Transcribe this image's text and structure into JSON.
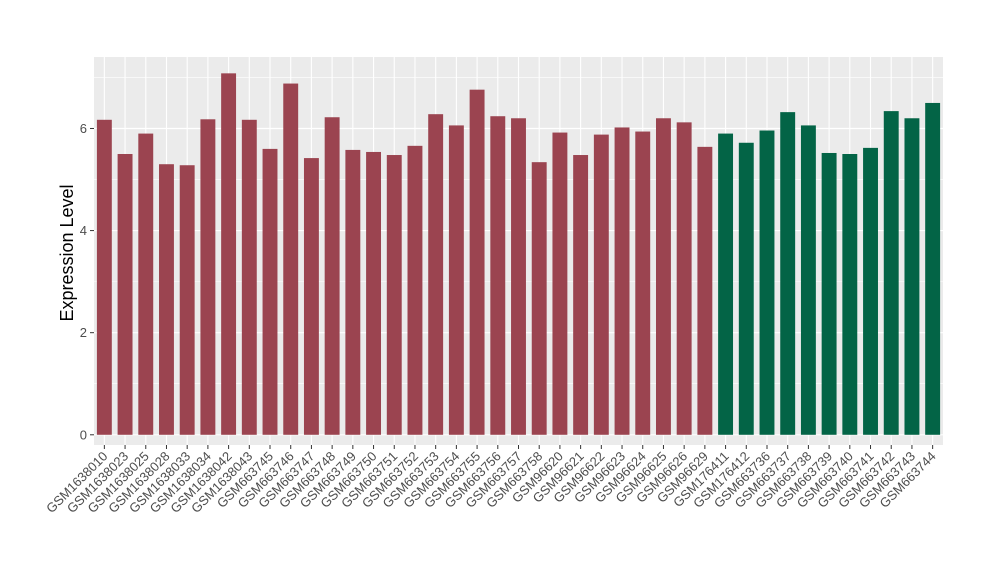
{
  "chart_data": {
    "type": "bar",
    "ylabel": "Expression Level",
    "xlabel": "",
    "ylim": [
      -0.2,
      7.4
    ],
    "yticks": [
      0,
      2,
      4,
      6
    ],
    "grid": true,
    "legend": "none",
    "colors": {
      "group1": "#9B4450",
      "group2": "#036446",
      "panel": "#EBEBEB",
      "gridline": "#FFFFFF"
    },
    "categories": [
      "GSM1638010",
      "GSM1638023",
      "GSM1638025",
      "GSM1638028",
      "GSM1638033",
      "GSM1638034",
      "GSM1638042",
      "GSM1638043",
      "GSM663745",
      "GSM663746",
      "GSM663747",
      "GSM663748",
      "GSM663749",
      "GSM663750",
      "GSM663751",
      "GSM663752",
      "GSM663753",
      "GSM663754",
      "GSM663755",
      "GSM663756",
      "GSM663757",
      "GSM663758",
      "GSM96620",
      "GSM96621",
      "GSM96622",
      "GSM96623",
      "GSM96624",
      "GSM96625",
      "GSM96626",
      "GSM96629",
      "GSM176411",
      "GSM176412",
      "GSM663736",
      "GSM663737",
      "GSM663738",
      "GSM663739",
      "GSM663740",
      "GSM663741",
      "GSM663742",
      "GSM663743",
      "GSM663744"
    ],
    "values": [
      6.17,
      5.5,
      5.9,
      5.3,
      5.28,
      6.18,
      7.08,
      6.17,
      5.6,
      6.88,
      5.42,
      6.22,
      5.58,
      5.54,
      5.48,
      5.66,
      6.28,
      6.06,
      6.76,
      6.24,
      6.2,
      5.34,
      5.92,
      5.48,
      5.88,
      6.02,
      5.94,
      6.2,
      6.12,
      5.64,
      5.9,
      5.72,
      5.96,
      6.32,
      6.06,
      5.52,
      5.5,
      5.62,
      6.34,
      6.2,
      6.5
    ],
    "groups": [
      1,
      1,
      1,
      1,
      1,
      1,
      1,
      1,
      1,
      1,
      1,
      1,
      1,
      1,
      1,
      1,
      1,
      1,
      1,
      1,
      1,
      1,
      1,
      1,
      1,
      1,
      1,
      1,
      1,
      1,
      2,
      2,
      2,
      2,
      2,
      2,
      2,
      2,
      2,
      2,
      2
    ]
  }
}
